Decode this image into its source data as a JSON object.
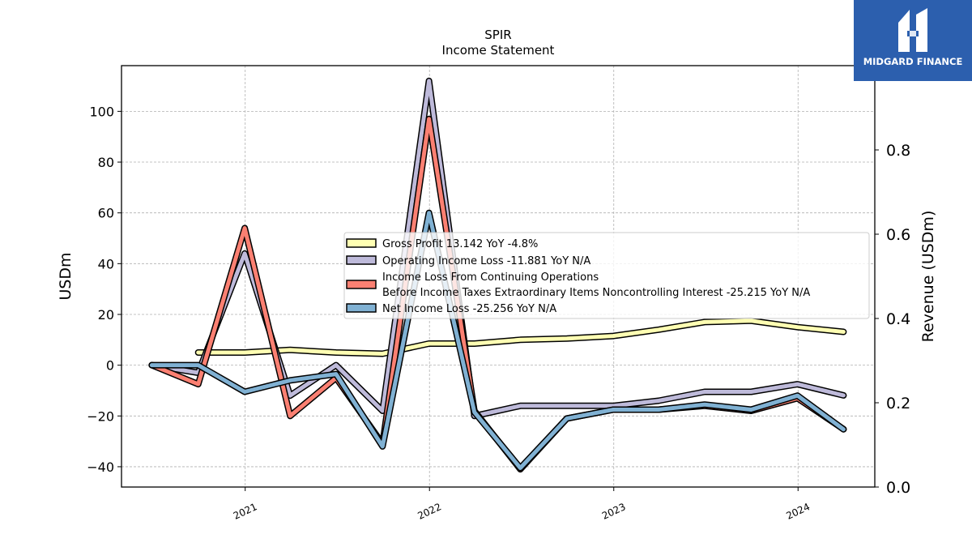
{
  "chart_data": {
    "type": "line",
    "title": "SPIR",
    "subtitle": "Income Statement",
    "ylabel": "USDm",
    "y2label": "Revenue (USDm)",
    "ylim": [
      -48,
      118
    ],
    "y2lim": [
      0,
      1.0
    ],
    "yticks": [
      "100",
      "80",
      "60",
      "40",
      "20",
      "0",
      "−20",
      "−40"
    ],
    "yticks_values": [
      100,
      80,
      60,
      40,
      20,
      0,
      -20,
      -40
    ],
    "y2ticks": [
      "0.8",
      "0.6",
      "0.4",
      "0.2",
      "0.0"
    ],
    "y2ticks_values": [
      0.8,
      0.6,
      0.4,
      0.2,
      0.0
    ],
    "xticks": [
      "2021",
      "2022",
      "2023",
      "2024"
    ],
    "xticks_values": [
      "2021-01-01",
      "2022-01-01",
      "2023-01-01",
      "2024-01-01"
    ],
    "xlim": [
      "2020-05-01",
      "2024-06-01"
    ],
    "grid": true,
    "legend_position": "center-right",
    "legend": [
      "Gross Profit  13.142 YoY -4.8%",
      "Operating Income Loss  -11.881 YoY N/A",
      "Income Loss From Continuing Operations\nBefore Income Taxes Extraordinary Items Noncontrolling Interest  -25.215 YoY N/A",
      "Net Income Loss  -25.256 YoY N/A"
    ],
    "series": [
      {
        "name": "Gross Profit",
        "color": "#ffffb3",
        "x": [
          "2020-09-30",
          "2020-12-31",
          "2021-03-31",
          "2021-06-30",
          "2021-09-30",
          "2021-12-31",
          "2022-03-31",
          "2022-06-30",
          "2022-09-30",
          "2022-12-31",
          "2023-03-31",
          "2023-06-30",
          "2023-09-30",
          "2023-12-31",
          "2024-03-31"
        ],
        "values": [
          5,
          5,
          6,
          5,
          4.5,
          8.5,
          8.5,
          10,
          10.5,
          11.5,
          14,
          17,
          17.5,
          15,
          13.142
        ]
      },
      {
        "name": "Operating Income Loss",
        "color": "#bebada",
        "x": [
          "2020-06-30",
          "2020-09-30",
          "2020-12-31",
          "2021-03-31",
          "2021-06-30",
          "2021-09-30",
          "2021-12-31",
          "2022-03-31",
          "2022-06-30",
          "2022-09-30",
          "2022-12-31",
          "2023-03-31",
          "2023-06-30",
          "2023-09-30",
          "2023-12-31",
          "2024-03-31"
        ],
        "values": [
          0,
          -3,
          44,
          -12,
          0,
          -18,
          112,
          -20,
          -16,
          -16,
          -16,
          -14,
          -10.5,
          -10.5,
          -7.5,
          -11.881
        ]
      },
      {
        "name": "Income Loss From Continuing Operations Before Income Taxes Extraordinary Items Noncontrolling Interest",
        "color": "#fb8072",
        "x": [
          "2020-06-30",
          "2020-09-30",
          "2020-12-31",
          "2021-03-31",
          "2021-06-30",
          "2021-09-30",
          "2021-12-31",
          "2022-03-31",
          "2022-06-30",
          "2022-09-30",
          "2022-12-31",
          "2023-03-31",
          "2023-06-30",
          "2023-09-30",
          "2023-12-31",
          "2024-03-31"
        ],
        "values": [
          0,
          -7.5,
          54,
          -20,
          -5,
          -31,
          97,
          -18,
          -41,
          -21,
          -17.5,
          -17.5,
          -16,
          -18,
          -13,
          -25.215
        ]
      },
      {
        "name": "Net Income Loss",
        "color": "#80b1d3",
        "x": [
          "2020-06-30",
          "2020-09-30",
          "2020-12-31",
          "2021-03-31",
          "2021-06-30",
          "2021-09-30",
          "2021-12-31",
          "2022-03-31",
          "2022-06-30",
          "2022-09-30",
          "2022-12-31",
          "2023-03-31",
          "2023-06-30",
          "2023-09-30",
          "2023-12-31",
          "2024-03-31"
        ],
        "values": [
          0,
          0,
          -10.5,
          -6,
          -3.5,
          -32,
          60,
          -18.5,
          -40.5,
          -21,
          -17.5,
          -17.5,
          -15.5,
          -17.5,
          -12,
          -25.256
        ]
      }
    ]
  },
  "logo": {
    "text": "MIDGARD FINANCE",
    "background": "#2c5fae"
  }
}
